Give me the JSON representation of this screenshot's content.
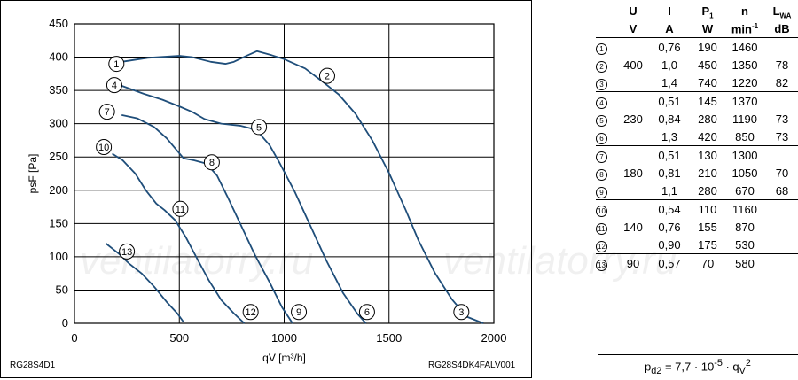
{
  "chart_data": {
    "type": "line",
    "xlabel": "qV [m³/h]",
    "ylabel": "psF [Pa]",
    "xlim": [
      0,
      2000
    ],
    "ylim": [
      0,
      450
    ],
    "xticks": [
      0,
      500,
      1000,
      1500,
      2000
    ],
    "yticks": [
      0,
      50,
      100,
      150,
      200,
      250,
      300,
      350,
      400,
      450
    ],
    "grid": true,
    "series": [
      {
        "name": "1",
        "values": [
          [
            225,
            393
          ],
          [
            350,
            399
          ],
          [
            500,
            402
          ],
          [
            560,
            400
          ],
          [
            650,
            393
          ],
          [
            720,
            390
          ],
          [
            760,
            393
          ],
          [
            820,
            402
          ],
          [
            870,
            409
          ],
          [
            940,
            403
          ],
          [
            1000,
            397
          ]
        ],
        "label_at": [
          200,
          390
        ]
      },
      {
        "name": "2",
        "values": [
          [
            1000,
            397
          ],
          [
            1100,
            383
          ],
          [
            1180,
            364
          ],
          [
            1260,
            344
          ],
          [
            1340,
            315
          ],
          [
            1420,
            275
          ],
          [
            1500,
            226
          ],
          [
            1580,
            170
          ],
          [
            1640,
            125
          ],
          [
            1720,
            75
          ],
          [
            1800,
            36
          ],
          [
            1870,
            10
          ],
          [
            1950,
            0
          ]
        ],
        "label_at": [
          1205,
          372
        ]
      },
      {
        "name": "4",
        "values": [
          [
            225,
            357
          ],
          [
            330,
            345
          ],
          [
            420,
            336
          ],
          [
            500,
            326
          ],
          [
            560,
            318
          ],
          [
            620,
            307
          ],
          [
            700,
            300
          ],
          [
            790,
            297
          ],
          [
            840,
            293
          ],
          [
            880,
            286
          ],
          [
            930,
            268
          ],
          [
            980,
            240
          ],
          [
            1050,
            198
          ],
          [
            1120,
            150
          ],
          [
            1200,
            95
          ],
          [
            1280,
            46
          ],
          [
            1350,
            14
          ],
          [
            1390,
            0
          ]
        ],
        "label_at": [
          190,
          358
        ]
      },
      {
        "name": "7",
        "values": [
          [
            225,
            313
          ],
          [
            300,
            308
          ],
          [
            380,
            295
          ],
          [
            440,
            278
          ],
          [
            480,
            263
          ],
          [
            520,
            248
          ],
          [
            570,
            245
          ],
          [
            630,
            240
          ],
          [
            680,
            222
          ],
          [
            730,
            190
          ],
          [
            790,
            150
          ],
          [
            860,
            103
          ],
          [
            930,
            62
          ],
          [
            990,
            24
          ],
          [
            1040,
            0
          ]
        ],
        "label_at": [
          155,
          318
        ]
      },
      {
        "name": "10",
        "values": [
          [
            180,
            255
          ],
          [
            230,
            245
          ],
          [
            290,
            225
          ],
          [
            340,
            200
          ],
          [
            390,
            180
          ],
          [
            430,
            170
          ],
          [
            480,
            155
          ],
          [
            530,
            130
          ],
          [
            580,
            100
          ],
          [
            640,
            65
          ],
          [
            700,
            35
          ],
          [
            760,
            15
          ],
          [
            810,
            0
          ]
        ],
        "label_at": [
          140,
          265
        ]
      },
      {
        "name": "13",
        "values": [
          [
            150,
            120
          ],
          [
            210,
            105
          ],
          [
            260,
            90
          ],
          [
            320,
            75
          ],
          [
            380,
            55
          ],
          [
            440,
            32
          ],
          [
            490,
            15
          ],
          [
            520,
            2
          ]
        ],
        "label_at": [
          250,
          108
        ]
      },
      {
        "name": "3",
        "label_at": [
          1845,
          17
        ]
      },
      {
        "name": "6",
        "label_at": [
          1395,
          17
        ]
      },
      {
        "name": "9",
        "label_at": [
          1070,
          17
        ]
      },
      {
        "name": "12",
        "label_at": [
          840,
          17
        ]
      },
      {
        "name": "5",
        "label_at": [
          880,
          295
        ]
      },
      {
        "name": "8",
        "label_at": [
          655,
          242
        ]
      },
      {
        "name": "11",
        "label_at": [
          505,
          172
        ]
      }
    ]
  },
  "models": {
    "left": "RG28S4D1",
    "right": "RG28S4DK4FALV001"
  },
  "watermark": "ventilatorry.ru",
  "table": {
    "headers": [
      "U",
      "I",
      "P1",
      "n",
      "LWA"
    ],
    "units": [
      "V",
      "A",
      "W",
      "min-1",
      "dB"
    ],
    "rows": [
      {
        "id": "1",
        "u": "",
        "i": "0,76",
        "p": "190",
        "n": "1460",
        "l": ""
      },
      {
        "id": "2",
        "u": "400",
        "i": "1,0",
        "p": "450",
        "n": "1350",
        "l": "78"
      },
      {
        "id": "3",
        "u": "",
        "i": "1,4",
        "p": "740",
        "n": "1220",
        "l": "82"
      },
      {
        "id": "4",
        "u": "",
        "i": "0,51",
        "p": "145",
        "n": "1370",
        "l": ""
      },
      {
        "id": "5",
        "u": "230",
        "i": "0,84",
        "p": "280",
        "n": "1190",
        "l": "73"
      },
      {
        "id": "6",
        "u": "",
        "i": "1,3",
        "p": "420",
        "n": "850",
        "l": "73"
      },
      {
        "id": "7",
        "u": "",
        "i": "0,51",
        "p": "130",
        "n": "1300",
        "l": ""
      },
      {
        "id": "8",
        "u": "180",
        "i": "0,81",
        "p": "210",
        "n": "1050",
        "l": "70"
      },
      {
        "id": "9",
        "u": "",
        "i": "1,1",
        "p": "280",
        "n": "670",
        "l": "68"
      },
      {
        "id": "10",
        "u": "",
        "i": "0,54",
        "p": "110",
        "n": "1160",
        "l": ""
      },
      {
        "id": "11",
        "u": "140",
        "i": "0,76",
        "p": "155",
        "n": "870",
        "l": ""
      },
      {
        "id": "12",
        "u": "",
        "i": "0,90",
        "p": "175",
        "n": "530",
        "l": ""
      },
      {
        "id": "13",
        "u": "90",
        "i": "0,57",
        "p": "70",
        "n": "580",
        "l": ""
      }
    ]
  },
  "formula": "pd2 = 7,7 · 10-5 · qV2",
  "colors": {
    "curve": "#1f4e7a",
    "grid": "#000000"
  }
}
